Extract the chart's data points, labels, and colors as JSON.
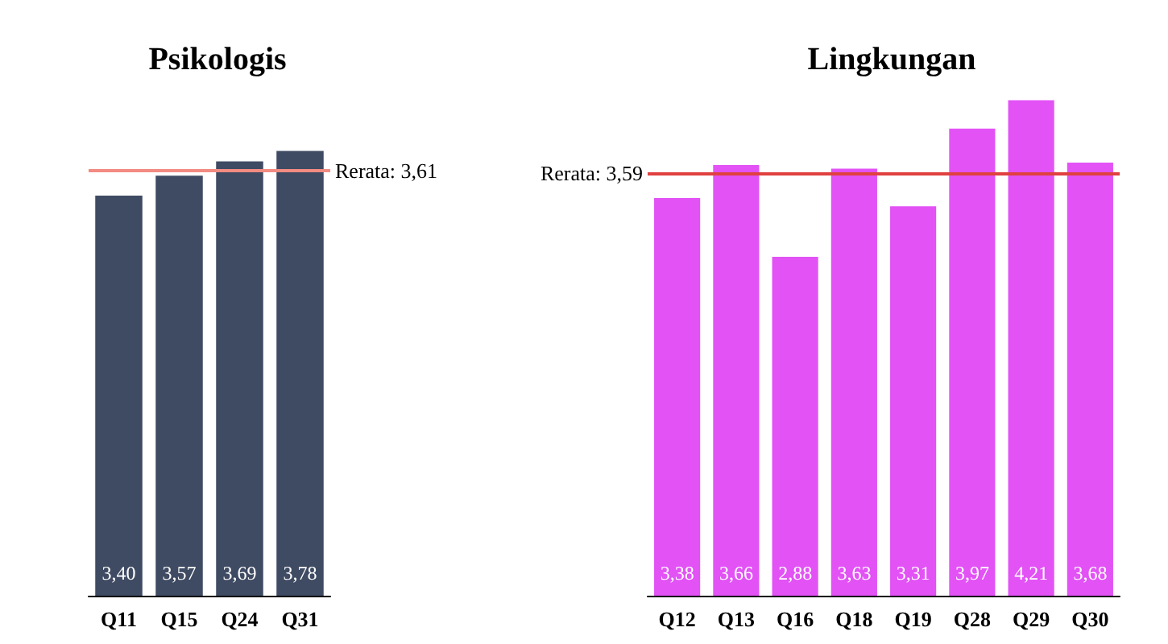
{
  "chart_data": [
    {
      "type": "bar",
      "title": "Psikologis",
      "categories": [
        "Q11",
        "Q15",
        "Q24",
        "Q31"
      ],
      "values": [
        3.4,
        3.57,
        3.69,
        3.78
      ],
      "value_labels": [
        "3,40",
        "3,57",
        "3,69",
        "3,78"
      ],
      "color": "#3f4b63",
      "tick_labels": "x",
      "ref_lines": [
        {
          "axis": "y",
          "value": 3.61,
          "label": "Rerata: 3,61",
          "color": "#f28b82"
        }
      ]
    },
    {
      "type": "bar",
      "title": "Lingkungan",
      "categories": [
        "Q12",
        "Q13",
        "Q16",
        "Q18",
        "Q19",
        "Q28",
        "Q29",
        "Q30"
      ],
      "values": [
        3.38,
        3.66,
        2.88,
        3.63,
        3.31,
        3.97,
        4.21,
        3.68
      ],
      "value_labels": [
        "3,38",
        "3,66",
        "2,88",
        "3,63",
        "3,31",
        "3,97",
        "4,21",
        "3,68"
      ],
      "color": "#e252f5",
      "tick_labels": "x",
      "ref_lines": [
        {
          "axis": "y",
          "value": 3.59,
          "label": "Rerata: 3,59",
          "color": "#e0403f"
        }
      ]
    }
  ]
}
